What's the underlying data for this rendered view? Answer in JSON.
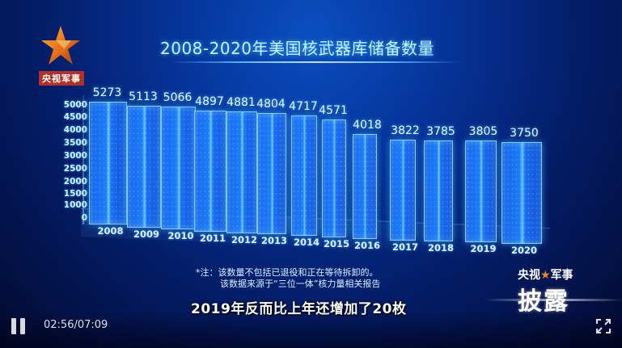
{
  "channel_logo": {
    "label": "央视军事",
    "icon": "star-icon",
    "colors": {
      "star": "#e8731a",
      "label_bg": "#b2302a"
    }
  },
  "overlay": {
    "note_line1": "*注：该数量不包括已退役和正在等待拆卸的。",
    "note_line2": "该数据来源于“三位一体”核力量相关报告",
    "subtitle": "2019年反而比上年还增加了20枚",
    "brand_top": "央视",
    "brand_star": "★",
    "brand_top2": "军事",
    "brand_main": "披露"
  },
  "player": {
    "pause_icon": "pause-icon",
    "current_time": "02:56",
    "duration": "07:09",
    "time_display": "02:56/07:09",
    "fullscreen_icon": "fullscreen-icon"
  },
  "chart_data": {
    "type": "bar",
    "title": "2008-2020年美国核武器库储备数量",
    "xlabel": "",
    "ylabel": "",
    "ylim": [
      0,
      5000
    ],
    "yticks": [
      "5000",
      "4500",
      "4000",
      "3500",
      "3000",
      "2500",
      "2000",
      "1500",
      "1000",
      "0"
    ],
    "categories": [
      "2008",
      "2009",
      "2010",
      "2011",
      "2012",
      "2013",
      "2014",
      "2015",
      "2016",
      "2017",
      "2018",
      "2019",
      "2020"
    ],
    "values": [
      5273,
      5113,
      5066,
      4897,
      4881,
      4804,
      4717,
      4571,
      4018,
      3822,
      3785,
      3805,
      3750
    ],
    "value_labels": [
      "5273",
      "5113",
      "5066",
      "4897",
      "4881",
      "4804",
      "4717",
      "4571",
      "4018",
      "3822",
      "3785",
      "3805",
      "3750"
    ],
    "style": "3d-glass-columns",
    "color": "#1e82ff",
    "grid": false,
    "legend": null
  }
}
